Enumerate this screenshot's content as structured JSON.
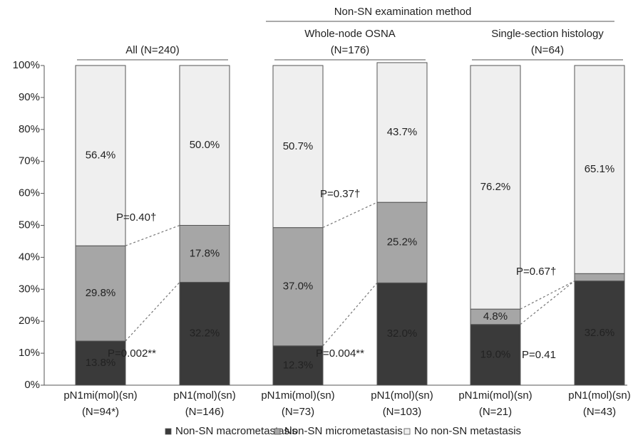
{
  "chart_data": {
    "type": "stacked-bar",
    "group_headers": {
      "top": "Non-SN examination method",
      "groups": [
        {
          "title": "All (N=240)"
        },
        {
          "title": "Whole-node OSNA",
          "subtitle": "(N=176)"
        },
        {
          "title": "Single-section histology",
          "subtitle": "(N=64)"
        }
      ]
    },
    "categories": [
      "pN1mi(mol)(sn)",
      "pN1(mol)(sn)",
      "pN1mi(mol)(sn)",
      "pN1(mol)(sn)",
      "pN1mi(mol)(sn)",
      "pN1(mol)(sn)"
    ],
    "category_sublabels": [
      "(N=94*)",
      "(N=146)",
      "(N=73)",
      "(N=103)",
      "(N=21)",
      "(N=43)"
    ],
    "series": [
      {
        "name": "Non-SN macrometastasis",
        "color": "#3a3a3a",
        "values": [
          13.8,
          32.2,
          12.3,
          32.0,
          19.0,
          32.6
        ],
        "value_labels": [
          "13.8%",
          "32.2%",
          "12.3%",
          "32.0%",
          "19.0%",
          "32.6%"
        ]
      },
      {
        "name": "Non-SN micrometastasis",
        "color": "#a6a6a6",
        "values": [
          29.8,
          17.8,
          37.0,
          25.2,
          4.8,
          2.3
        ],
        "value_labels": [
          "29.8%",
          "17.8%",
          "37.0%",
          "25.2%",
          "4.8%",
          null
        ]
      },
      {
        "name": "No non-SN metastasis",
        "color": "#efefef",
        "values": [
          56.4,
          50.0,
          50.7,
          43.7,
          76.2,
          65.1
        ],
        "value_labels": [
          "56.4%",
          "50.0%",
          "50.7%",
          "43.7%",
          "76.2%",
          "65.1%"
        ]
      }
    ],
    "annotations": [
      "P=0.40†",
      "P=0.002**",
      "P=0.37†",
      "P=0.004**",
      "P=0.67†",
      "P=0.41"
    ],
    "ylim": [
      0,
      100
    ],
    "yticks": [
      {
        "value": 0,
        "label": "0%"
      },
      {
        "value": 10,
        "label": "10%"
      },
      {
        "value": 20,
        "label": "20%"
      },
      {
        "value": 30,
        "label": "30%"
      },
      {
        "value": 40,
        "label": "40%"
      },
      {
        "value": 50,
        "label": "50%"
      },
      {
        "value": 60,
        "label": "60%"
      },
      {
        "value": 70,
        "label": "70%"
      },
      {
        "value": 80,
        "label": "80%"
      },
      {
        "value": 90,
        "label": "90%"
      },
      {
        "value": 100,
        "label": "100%"
      }
    ],
    "legend": "bottom"
  }
}
